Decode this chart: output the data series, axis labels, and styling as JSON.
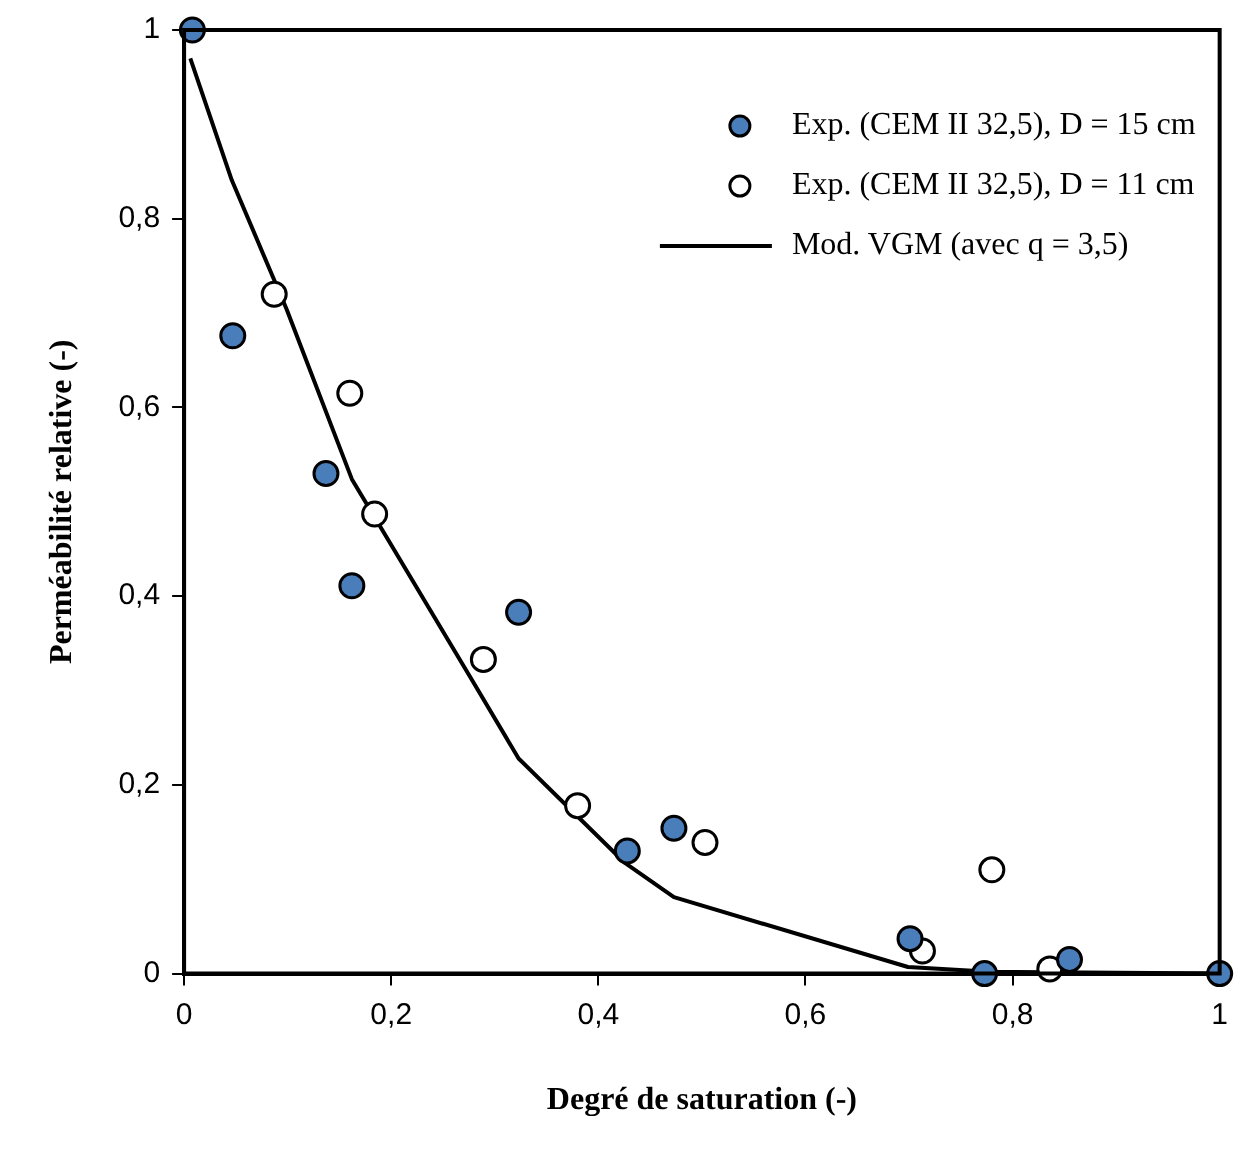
{
  "chart_data": {
    "type": "scatter",
    "xlabel": "Degré de saturation (-)",
    "ylabel": "Perméabilité relative (-)",
    "xlim": [
      0,
      1
    ],
    "ylim": [
      0,
      1
    ],
    "xticks": [
      0,
      {
        "value": 0.2,
        "label": "0,2"
      },
      {
        "value": 0.4,
        "label": "0,4"
      },
      {
        "value": 0.6,
        "label": "0,6"
      },
      {
        "value": 0.8,
        "label": "0,8"
      },
      1
    ],
    "yticks": [
      0,
      {
        "value": 0.2,
        "label": "0,2"
      },
      {
        "value": 0.4,
        "label": "0,4"
      },
      {
        "value": 0.6,
        "label": "0,6"
      },
      {
        "value": 0.8,
        "label": "0,8"
      },
      1
    ],
    "grid": false,
    "legend": "top right",
    "marker": "circle",
    "series": [
      {
        "name": "Exp. (CEM II 32,5), D = 15 cm",
        "color": "#4a7ebb",
        "x": [
          0.008,
          0.047,
          0.137,
          0.162,
          0.323,
          0.428,
          0.473,
          0.701,
          0.773,
          0.855,
          1.0
        ],
        "values": [
          1.0,
          0.676,
          0.53,
          0.411,
          0.383,
          0.13,
          0.154,
          0.037,
          0.0,
          0.015,
          0.0
        ]
      },
      {
        "name": "Exp. (CEM II 32,5), D = 11 cm",
        "color": "#ffffff",
        "x": [
          0.087,
          0.16,
          0.184,
          0.289,
          0.38,
          0.503,
          0.713,
          0.78,
          0.836
        ],
        "values": [
          0.72,
          0.615,
          0.487,
          0.333,
          0.178,
          0.139,
          0.024,
          0.11,
          0.005
        ]
      },
      {
        "name": "Mod. VGM (avec q = 3,5)",
        "type": "line",
        "color": "#000000",
        "marker": "none",
        "line_style": "solid",
        "x": [
          0.006,
          0.046,
          0.099,
          0.162,
          0.277,
          0.323,
          0.426,
          0.473,
          0.699,
          0.778,
          1.0
        ],
        "values": [
          0.97,
          0.841,
          0.704,
          0.524,
          0.313,
          0.228,
          0.117,
          0.081,
          0.007,
          0.002,
          0.0
        ]
      }
    ]
  }
}
